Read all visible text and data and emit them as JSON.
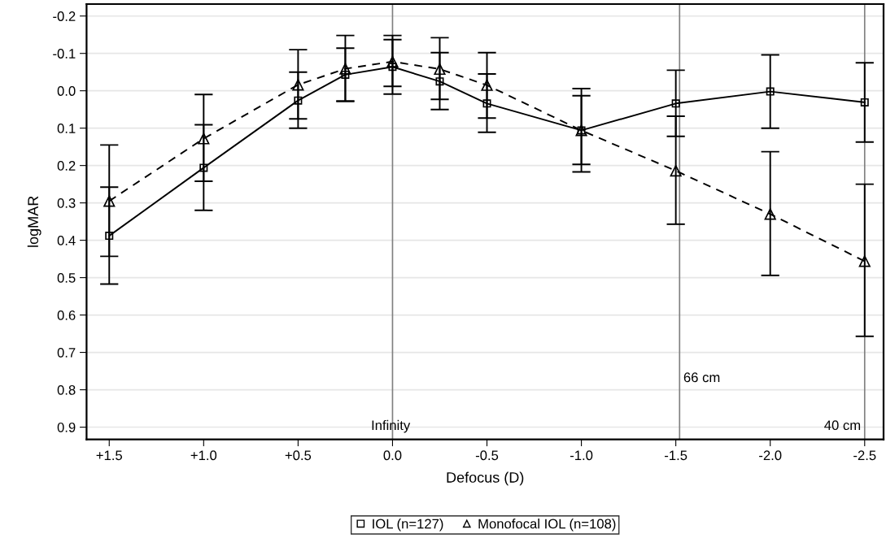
{
  "chart_data": {
    "type": "line",
    "xlabel": "Defocus (D)",
    "ylabel": "logMAR",
    "x": [
      1.5,
      1.0,
      0.5,
      0.25,
      0.0,
      -0.25,
      -0.5,
      -1.0,
      -1.5,
      -2.0,
      -2.5
    ],
    "series": [
      {
        "name": "IOL (n=127)",
        "color": "#000000",
        "marker": "square",
        "line_style": "solid",
        "values": [
          0.388,
          0.206,
          0.026,
          -0.043,
          -0.064,
          -0.025,
          0.034,
          0.106,
          0.034,
          0.002,
          0.031
        ],
        "errors": [
          [
            0.258,
            0.517
          ],
          [
            0.091,
            0.32
          ],
          [
            -0.05,
            0.1
          ],
          [
            -0.114,
            0.028
          ],
          [
            -0.137,
            0.009
          ],
          [
            -0.102,
            0.05
          ],
          [
            -0.045,
            0.111
          ],
          [
            -0.006,
            0.217
          ],
          [
            -0.055,
            0.122
          ],
          [
            -0.096,
            0.1
          ],
          [
            -0.075,
            0.137
          ]
        ]
      },
      {
        "name": "Monofocal IOL (n=108)",
        "color": "#000000",
        "marker": "triangle",
        "line_style": "dashed",
        "values": [
          0.295,
          0.128,
          -0.016,
          -0.059,
          -0.078,
          -0.058,
          -0.015,
          0.106,
          0.214,
          0.33,
          0.456
        ],
        "errors": [
          [
            0.145,
            0.443
          ],
          [
            0.01,
            0.242
          ],
          [
            -0.11,
            0.075
          ],
          [
            -0.148,
            0.028
          ],
          [
            -0.148,
            -0.012
          ],
          [
            -0.142,
            0.023
          ],
          [
            -0.102,
            0.073
          ],
          [
            0.013,
            0.197
          ],
          [
            0.068,
            0.357
          ],
          [
            0.163,
            0.494
          ],
          [
            0.25,
            0.657
          ]
        ]
      }
    ],
    "xlim": [
      1.62,
      -2.6
    ],
    "xticks": [
      {
        "value": 1.5,
        "label": "+1.5"
      },
      {
        "value": 1.0,
        "label": "+1.0"
      },
      {
        "value": 0.5,
        "label": "+0.5"
      },
      {
        "value": 0.0,
        "label": "0.0"
      },
      {
        "value": -0.5,
        "label": "-0.5"
      },
      {
        "value": -1.0,
        "label": "-1.0"
      },
      {
        "value": -1.5,
        "label": "-1.5"
      },
      {
        "value": -2.0,
        "label": "-2.0"
      },
      {
        "value": -2.5,
        "label": "-2.5"
      }
    ],
    "ylim": [
      0.933,
      -0.232
    ],
    "yticks": [
      {
        "value": -0.2,
        "label": "-0.2"
      },
      {
        "value": -0.1,
        "label": "-0.1"
      },
      {
        "value": 0.0,
        "label": "0.0"
      },
      0.1,
      0.2,
      0.3,
      0.4,
      0.5,
      0.6,
      0.7,
      0.8,
      0.9
    ],
    "ref_lines": [
      {
        "axis": "x",
        "value": 0.0,
        "label": "Infinity",
        "color": "#808080"
      },
      {
        "axis": "x",
        "value": -1.52,
        "label": "66 cm",
        "color": "#808080"
      },
      {
        "axis": "x",
        "value": -2.5,
        "label": "40 cm",
        "color": "#808080"
      }
    ],
    "grid": "y",
    "legend": "bottom"
  }
}
